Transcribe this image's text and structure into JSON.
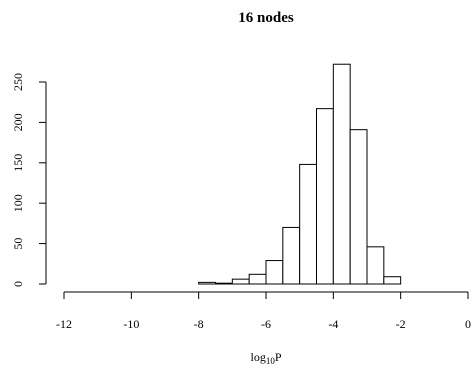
{
  "chart_data": {
    "type": "bar",
    "title": "16 nodes",
    "xlabel_base": "log",
    "xlabel_sub": "10",
    "xlabel_var": "P",
    "ylabel": "",
    "xlim": [
      -12,
      0
    ],
    "ylim": [
      0,
      250
    ],
    "x_ticks": [
      -12,
      -10,
      -8,
      -6,
      -4,
      -2,
      0
    ],
    "y_ticks": [
      0,
      50,
      100,
      150,
      200,
      250
    ],
    "bin_edges": [
      -8.0,
      -7.5,
      -7.0,
      -6.5,
      -6.0,
      -5.5,
      -5.0,
      -4.5,
      -4.0,
      -3.5,
      -3.0,
      -2.5,
      -2.0
    ],
    "values": [
      2,
      1,
      6,
      12,
      29,
      70,
      148,
      217,
      272,
      191,
      46,
      9
    ],
    "grid": false,
    "legend": "none"
  }
}
